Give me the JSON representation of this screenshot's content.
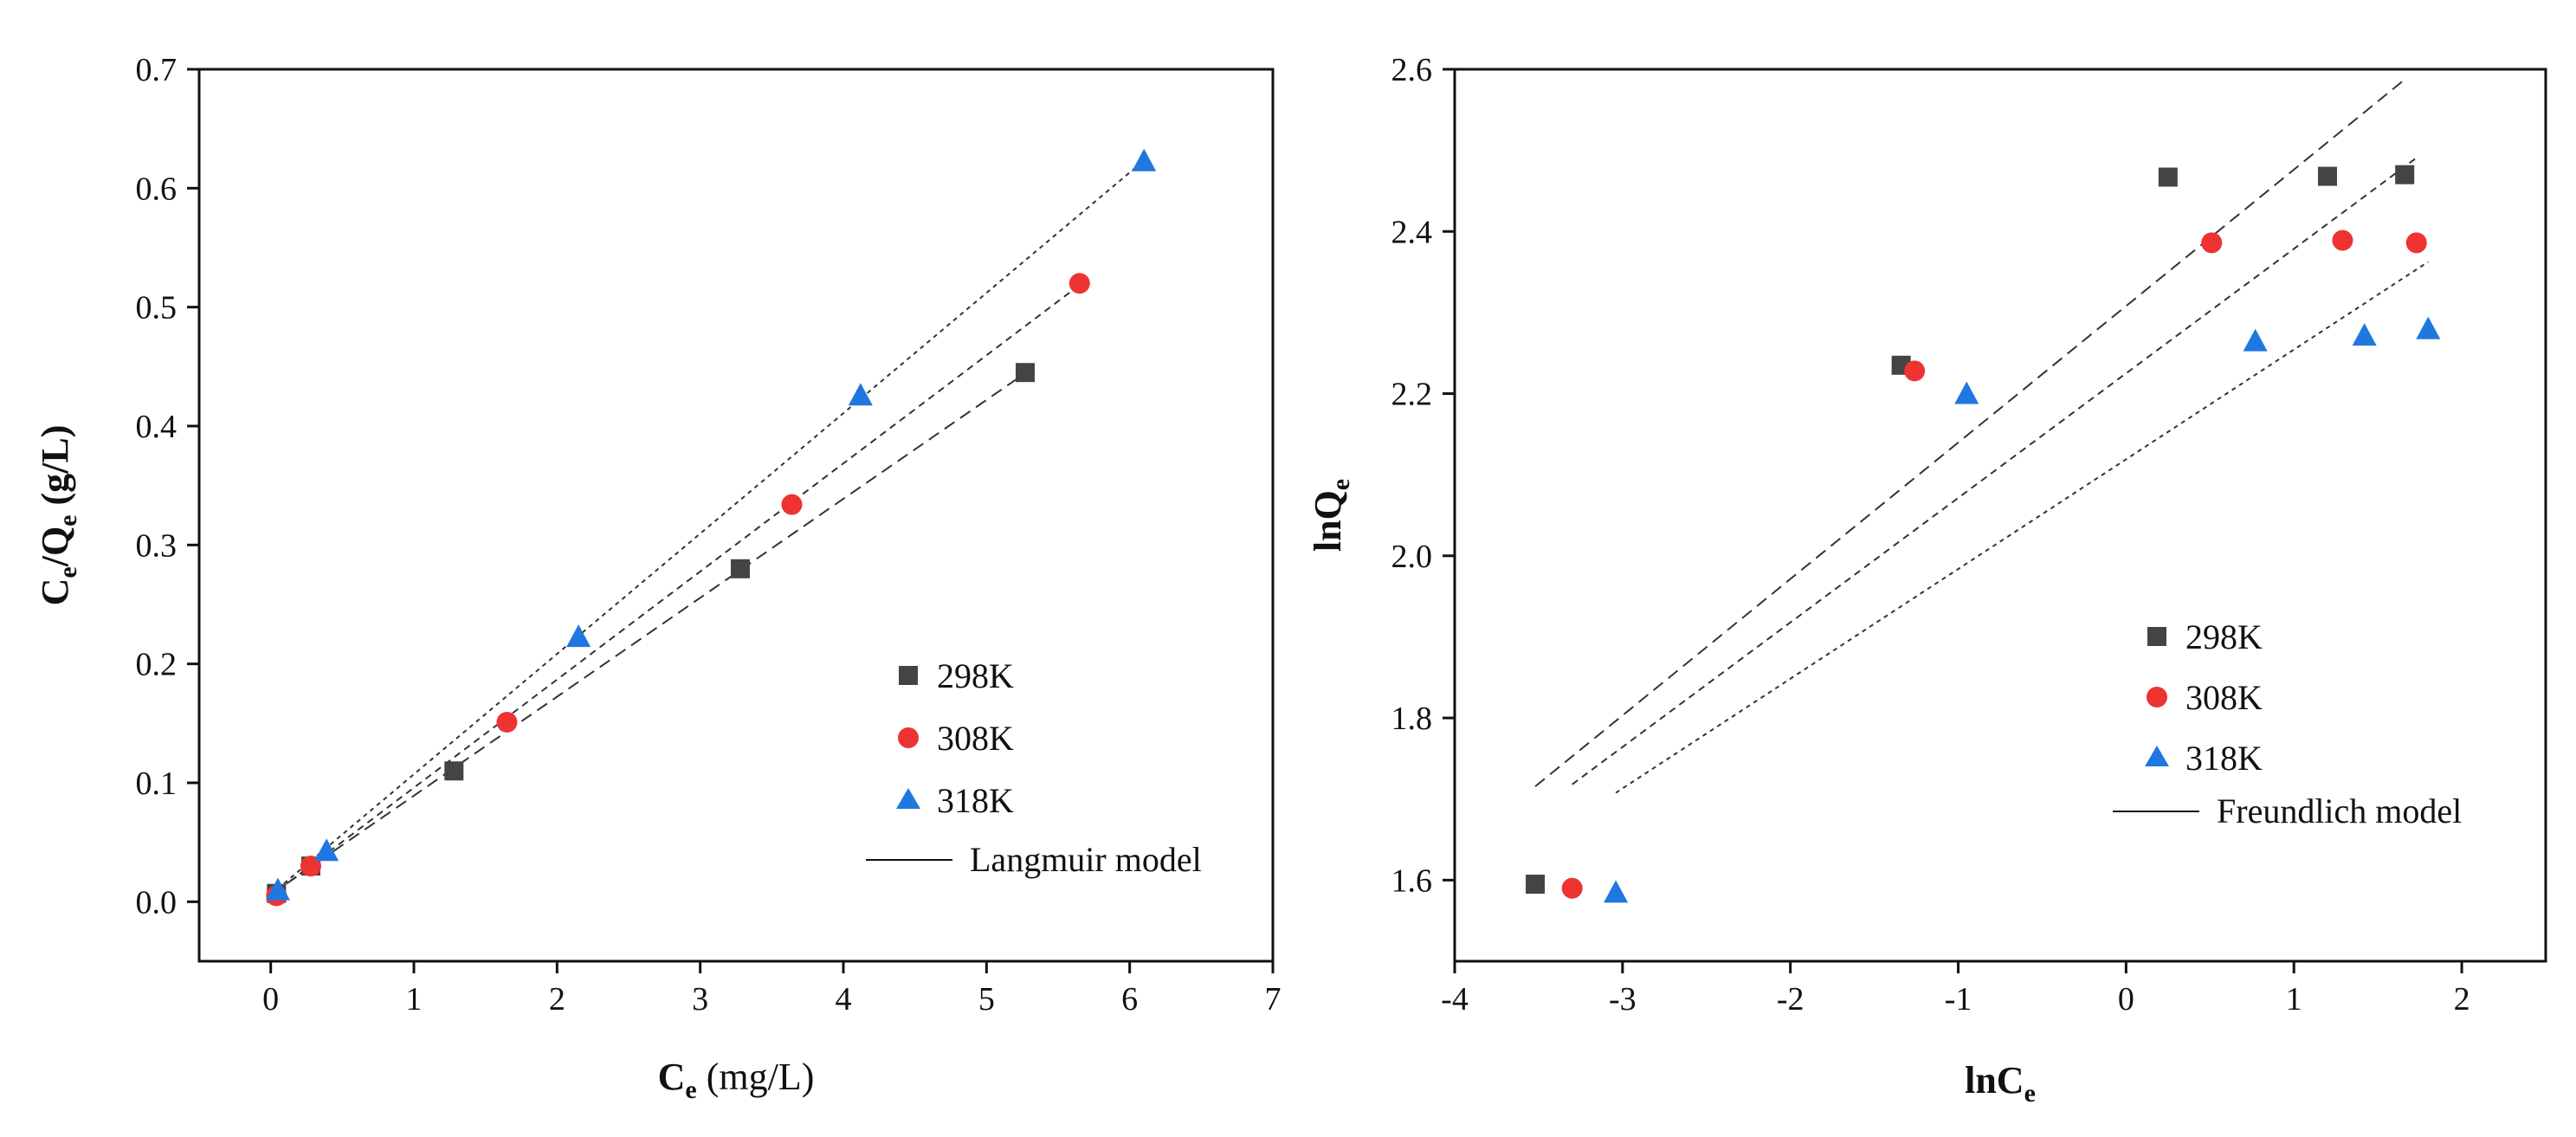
{
  "chart_data": [
    {
      "type": "scatter",
      "title": "",
      "xlabel": {
        "main": "C",
        "sub": "e",
        "rest": " (mg/L)"
      },
      "ylabel": {
        "p1": "C",
        "s1": "e",
        "p2": "/Q",
        "s2": "e",
        "p3": " (g/L)"
      },
      "xlim": [
        -0.5,
        7
      ],
      "ylim": [
        -0.05,
        0.7
      ],
      "xticks": [
        0,
        1,
        2,
        3,
        4,
        5,
        6,
        7
      ],
      "xtick_labels": [
        "0",
        "1",
        "2",
        "3",
        "4",
        "5",
        "6",
        "7"
      ],
      "yticks": [
        0.0,
        0.1,
        0.2,
        0.3,
        0.4,
        0.5,
        0.6,
        0.7
      ],
      "ytick_labels": [
        "0.0",
        "0.1",
        "0.2",
        "0.3",
        "0.4",
        "0.5",
        "0.6",
        "0.7"
      ],
      "series": [
        {
          "name": "298K",
          "marker": "square",
          "color": "#444444",
          "x": [
            0.04,
            0.28,
            1.28,
            3.28,
            5.27
          ],
          "y": [
            0.007,
            0.03,
            0.11,
            0.28,
            0.445
          ],
          "fit": {
            "x0": 0.0,
            "x1": 5.27,
            "slope": 0.0832,
            "intercept": 0.006
          }
        },
        {
          "name": "308K",
          "marker": "circle",
          "color": "#ee3333",
          "x": [
            0.04,
            0.28,
            1.65,
            3.64,
            5.65
          ],
          "y": [
            0.005,
            0.03,
            0.151,
            0.334,
            0.52
          ],
          "fit": {
            "x0": 0.0,
            "x1": 5.65,
            "slope": 0.0909,
            "intercept": 0.005
          }
        },
        {
          "name": "318K",
          "marker": "triangle",
          "color": "#1f77e0",
          "x": [
            0.05,
            0.39,
            2.15,
            4.12,
            6.1
          ],
          "y": [
            0.01,
            0.043,
            0.223,
            0.426,
            0.623
          ],
          "fit": {
            "x0": 0.0,
            "x1": 6.1,
            "slope": 0.1012,
            "intercept": 0.006
          }
        }
      ],
      "legend": {
        "position": "bottom-right",
        "entries": [
          "298K",
          "308K",
          "318K"
        ],
        "model_label": "Langmuir model"
      }
    },
    {
      "type": "scatter",
      "title": "",
      "xlabel": {
        "main": "lnC",
        "sub": "e"
      },
      "ylabel": {
        "main": "lnQ",
        "sub": "e"
      },
      "xlim": [
        -4,
        2.5
      ],
      "ylim": [
        1.5,
        2.6
      ],
      "xticks": [
        -4,
        -3,
        -2,
        -1,
        0,
        1,
        2
      ],
      "xtick_labels": [
        "-4",
        "-3",
        "-2",
        "-1",
        "0",
        "1",
        "2"
      ],
      "yticks": [
        1.6,
        1.8,
        2.0,
        2.2,
        2.4,
        2.6
      ],
      "ytick_labels": [
        "1.6",
        "1.8",
        "2.0",
        "2.2",
        "2.4",
        "2.6"
      ],
      "series": [
        {
          "name": "298K",
          "marker": "square",
          "color": "#444444",
          "x": [
            -3.52,
            -1.34,
            0.25,
            1.2,
            1.66
          ],
          "y": [
            1.595,
            2.235,
            2.467,
            2.468,
            2.47
          ],
          "fit": {
            "x0": -3.52,
            "x1": 1.66,
            "slope": 0.1683,
            "intercept": 2.308
          }
        },
        {
          "name": "308K",
          "marker": "circle",
          "color": "#ee3333",
          "x": [
            -3.3,
            -1.26,
            0.51,
            1.29,
            1.73
          ],
          "y": [
            1.59,
            2.228,
            2.386,
            2.389,
            2.386
          ],
          "fit": {
            "x0": -3.3,
            "x1": 1.73,
            "slope": 0.1536,
            "intercept": 2.225
          }
        },
        {
          "name": "318K",
          "marker": "triangle",
          "color": "#1f77e0",
          "x": [
            -3.04,
            -0.95,
            0.77,
            1.42,
            1.8
          ],
          "y": [
            1.585,
            2.2,
            2.265,
            2.272,
            2.28
          ],
          "fit": {
            "x0": -3.04,
            "x1": 1.8,
            "slope": 0.1353,
            "intercept": 2.119
          }
        }
      ],
      "legend": {
        "position": "bottom-right",
        "entries": [
          "298K",
          "308K",
          "318K"
        ],
        "model_label": "Freundlich model"
      }
    }
  ]
}
